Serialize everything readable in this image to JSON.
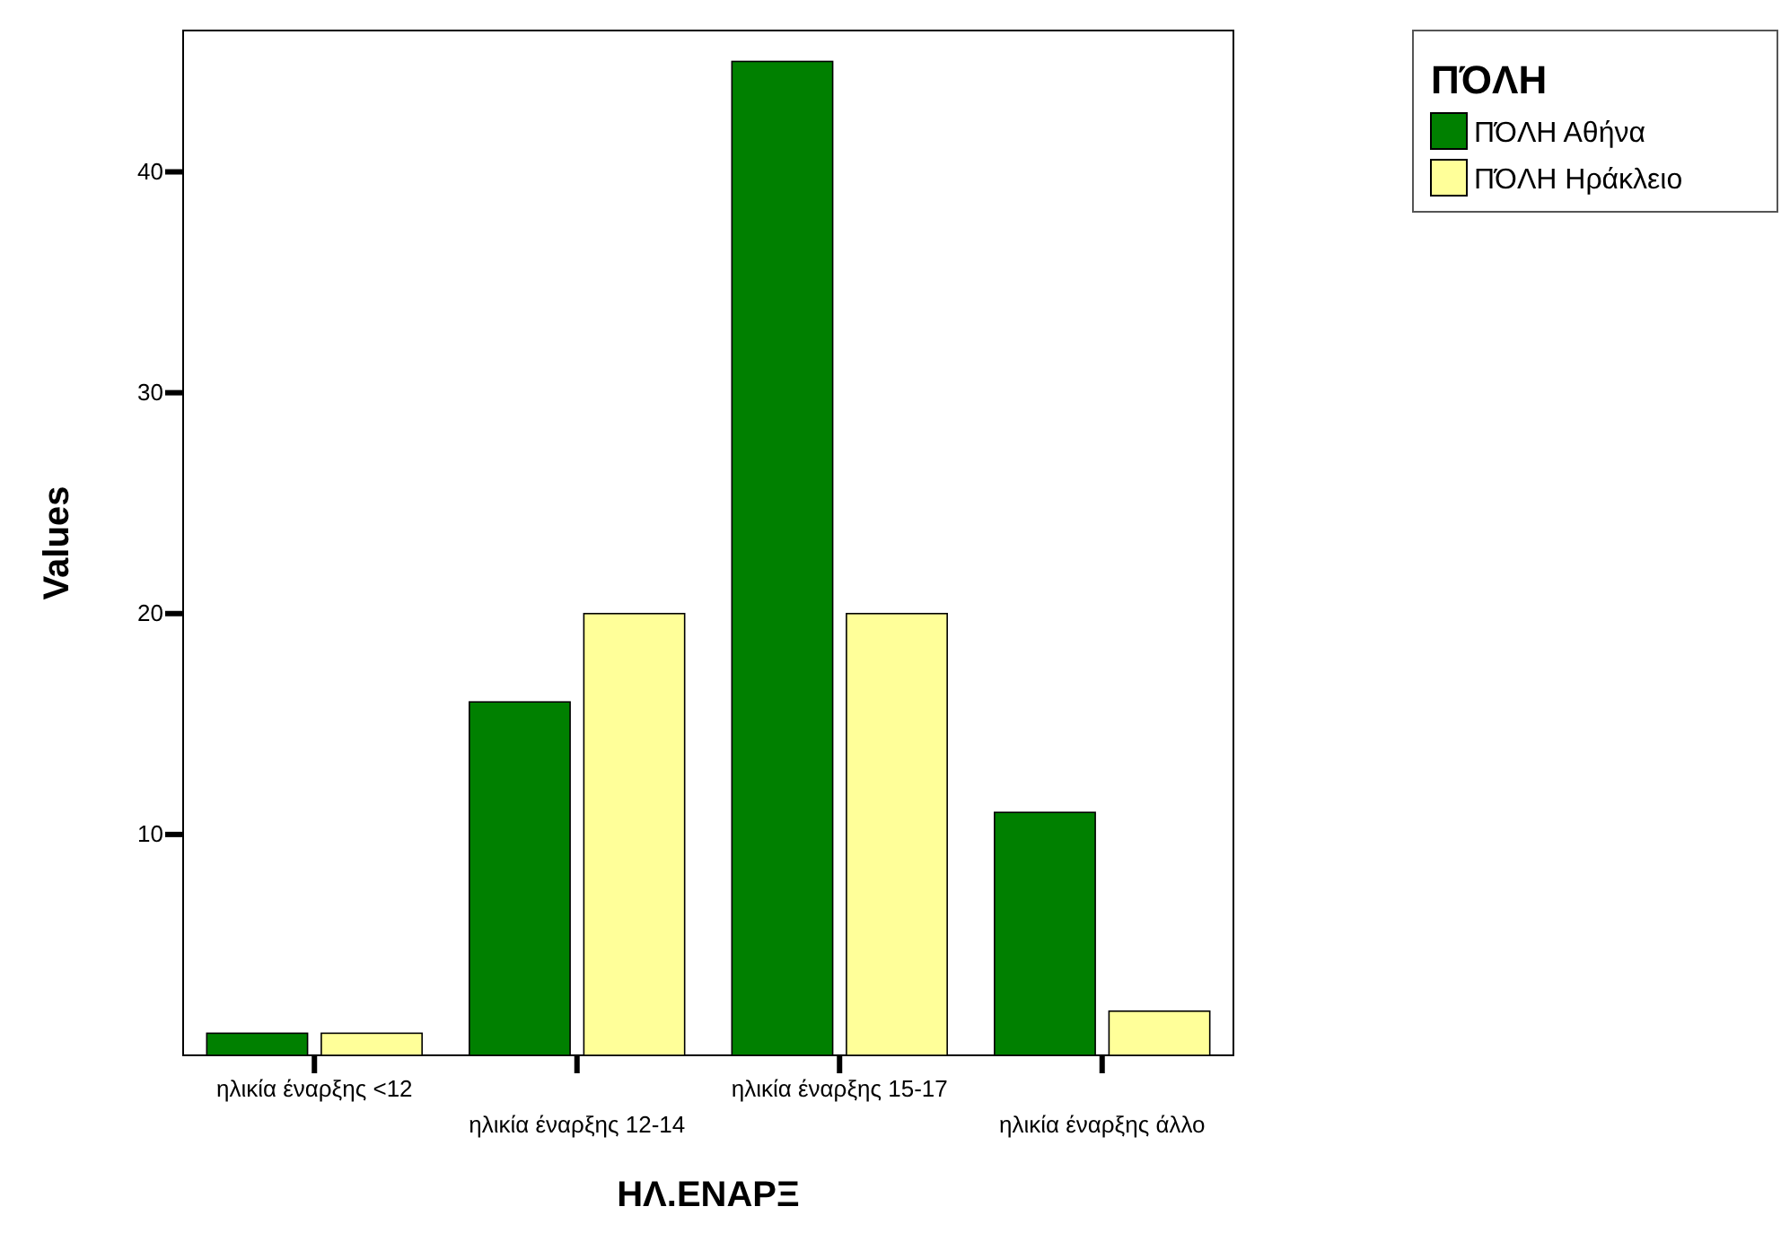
{
  "chart_data": {
    "type": "bar",
    "xlabel": "ΗΛ.ΕΝΑΡΞ",
    "ylabel": "Values",
    "legend_title": "ΠΌΛΗ",
    "categories": [
      "ηλικία έναρξης <12",
      "ηλικία έναρξης 12-14",
      "ηλικία έναρξης 15-17",
      "ηλικία έναρξης άλλο"
    ],
    "series": [
      {
        "name": "ΠΌΛΗ Αθήνα",
        "color": "#008000",
        "values": [
          1,
          16,
          45,
          11
        ]
      },
      {
        "name": "ΠΌΛΗ Ηράκλειο",
        "color": "#ffff99",
        "values": [
          1,
          20,
          20,
          2
        ]
      }
    ],
    "ylim": [
      0,
      46.4
    ],
    "yticks": [
      10,
      20,
      30,
      40
    ],
    "grid": false,
    "legend": "top right"
  }
}
